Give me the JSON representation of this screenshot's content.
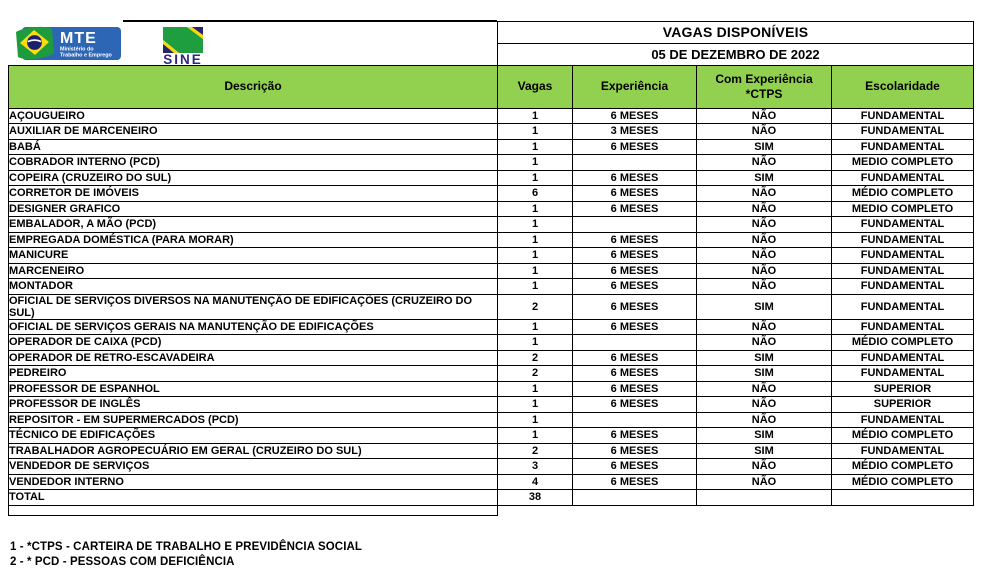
{
  "bulletin": {
    "title": "VAGAS DISPONÍVEIS",
    "date": "05 DE DEZEMBRO DE 2022"
  },
  "logos": {
    "mte": {
      "acronym": "MTE",
      "subtitle_line1": "Ministério do",
      "subtitle_line2": "Trabalho e Emprego"
    },
    "sine": {
      "name": "SINE"
    }
  },
  "table": {
    "columns": [
      "Descrição",
      "Vagas",
      "Experiência",
      "Com Experiência *CTPS",
      "Escolaridade"
    ],
    "rows": [
      [
        "AÇOUGUEIRO",
        "1",
        "6 MESES",
        "NÃO",
        "FUNDAMENTAL"
      ],
      [
        "AUXILIAR DE MARCENEIRO",
        "1",
        "3 MESES",
        "NÃO",
        "FUNDAMENTAL"
      ],
      [
        "BABÁ",
        "1",
        "6 MESES",
        "SIM",
        "FUNDAMENTAL"
      ],
      [
        "COBRADOR INTERNO (PCD)",
        "1",
        "",
        "NÃO",
        "MEDIO COMPLETO"
      ],
      [
        "COPEIRA (CRUZEIRO DO SUL)",
        "1",
        "6 MESES",
        "SIM",
        "FUNDAMENTAL"
      ],
      [
        "CORRETOR DE IMÓVEIS",
        "6",
        "6 MESES",
        "NÃO",
        "MÉDIO COMPLETO"
      ],
      [
        "DESIGNER GRAFICO",
        "1",
        "6 MESES",
        "NÃO",
        "MEDIO COMPLETO"
      ],
      [
        "EMBALADOR, A MÃO (PCD)",
        "1",
        "",
        "NÃO",
        "FUNDAMENTAL"
      ],
      [
        "EMPREGADA DOMÉSTICA (PARA MORAR)",
        "1",
        "6 MESES",
        "NÃO",
        "FUNDAMENTAL"
      ],
      [
        "MANICURE",
        "1",
        "6 MESES",
        "NÃO",
        "FUNDAMENTAL"
      ],
      [
        "MARCENEIRO",
        "1",
        "6 MESES",
        "NÃO",
        "FUNDAMENTAL"
      ],
      [
        "MONTADOR",
        "1",
        "6 MESES",
        "NÃO",
        "FUNDAMENTAL"
      ],
      [
        "OFICIAL DE SERVIÇOS  DIVERSOS NA MANUTENÇÃO DE EDIFICAÇÕES (CRUZEIRO DO SUL)",
        "2",
        "6 MESES",
        "SIM",
        "FUNDAMENTAL"
      ],
      [
        "OFICIAL DE SERVIÇOS GERAIS NA MANUTENÇÃO DE EDIFICAÇÕES",
        "1",
        "6 MESES",
        "NÃO",
        "FUNDAMENTAL"
      ],
      [
        "OPERADOR DE CAIXA (PCD)",
        "1",
        "",
        "NÃO",
        "MÉDIO COMPLETO"
      ],
      [
        "OPERADOR DE RETRO-ESCAVADEIRA",
        "2",
        "6 MESES",
        "SIM",
        "FUNDAMENTAL"
      ],
      [
        "PEDREIRO",
        "2",
        "6 MESES",
        "SIM",
        "FUNDAMENTAL"
      ],
      [
        "PROFESSOR DE ESPANHOL",
        "1",
        "6 MESES",
        "NÃO",
        "SUPERIOR"
      ],
      [
        "PROFESSOR DE INGLÊS",
        "1",
        "6 MESES",
        "NÃO",
        "SUPERIOR"
      ],
      [
        "REPOSITOR -  EM SUPERMERCADOS (PCD)",
        "1",
        "",
        "NÃO",
        "FUNDAMENTAL"
      ],
      [
        "TÉCNICO DE EDIFICAÇÕES",
        "1",
        "6 MESES",
        "SIM",
        "MÉDIO COMPLETO"
      ],
      [
        "TRABALHADOR AGROPECUÁRIO EM GERAL (CRUZEIRO DO SUL)",
        "2",
        "6 MESES",
        "SIM",
        "FUNDAMENTAL"
      ],
      [
        "VENDEDOR DE SERVIÇOS",
        "3",
        "6 MESES",
        "NÃO",
        "MÉDIO COMPLETO"
      ],
      [
        "VENDEDOR INTERNO",
        "4",
        "6 MESES",
        "NÃO",
        "MÉDIO COMPLETO"
      ]
    ],
    "total_label": "TOTAL",
    "total_value": "38"
  },
  "footnotes": [
    "1 - *CTPS - CARTEIRA DE TRABALHO E PREVIDÊNCIA SOCIAL",
    "2 - * PCD - PESSOAS COM DEFICIÊNCIA"
  ],
  "colors": {
    "header_green": "#92D050",
    "border_black": "#000000",
    "mte_blue": "#2d66b5",
    "sine_purple": "#312782",
    "flag_green": "#1d9b3d",
    "flag_yellow": "#fcdc0c",
    "flag_navy": "#1c1f6e"
  }
}
